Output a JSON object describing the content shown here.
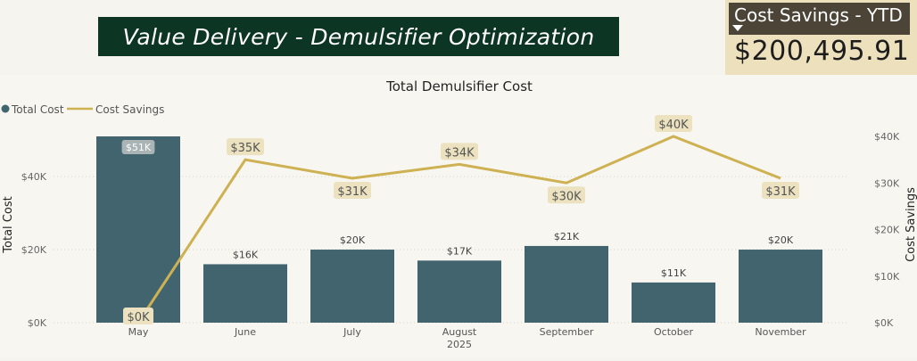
{
  "page_title": "Value Delivery - Demulsifier Optimization",
  "kpi": {
    "label": "Cost Savings - YTD",
    "value": "$200,495.91"
  },
  "colors": {
    "bar": "#41646f",
    "line": "#cdb152",
    "title_bg": "#0c3523",
    "line_label_bg": "#ece2bf"
  },
  "chart_data": {
    "type": "bar",
    "title": "Total Demulsifier Cost",
    "categories": [
      "May",
      "June",
      "July",
      "August",
      "September",
      "October",
      "November"
    ],
    "x_group_label": "2025",
    "series": [
      {
        "name": "Total Cost",
        "type": "bar",
        "axis": "left",
        "values": [
          51000,
          16000,
          20000,
          17000,
          21000,
          11000,
          20000
        ],
        "labels": [
          "$51K",
          "$16K",
          "$20K",
          "$17K",
          "$21K",
          "$11K",
          "$20K"
        ]
      },
      {
        "name": "Cost Savings",
        "type": "line",
        "axis": "right",
        "values": [
          0,
          35000,
          31000,
          34000,
          30000,
          40000,
          31000
        ],
        "labels": [
          "$0K",
          "$35K",
          "$31K",
          "$34K",
          "$30K",
          "$40K",
          "$31K"
        ]
      }
    ],
    "ylabel_left": "Total Cost",
    "ylabel_right": "Cost Savings",
    "ylim_left": [
      0,
      51000
    ],
    "ylim_right": [
      0,
      40000
    ],
    "left_ticks": [
      {
        "value": 0,
        "label": "$0K"
      },
      {
        "value": 20000,
        "label": "$20K"
      },
      {
        "value": 40000,
        "label": "$40K"
      }
    ],
    "right_ticks": [
      {
        "value": 0,
        "label": "$0K"
      },
      {
        "value": 10000,
        "label": "$10K"
      },
      {
        "value": 20000,
        "label": "$20K"
      },
      {
        "value": 30000,
        "label": "$30K"
      },
      {
        "value": 40000,
        "label": "$40K"
      }
    ],
    "legend": {
      "position": "top-left",
      "entries": [
        "Total Cost",
        "Cost Savings"
      ]
    },
    "grid": true
  }
}
